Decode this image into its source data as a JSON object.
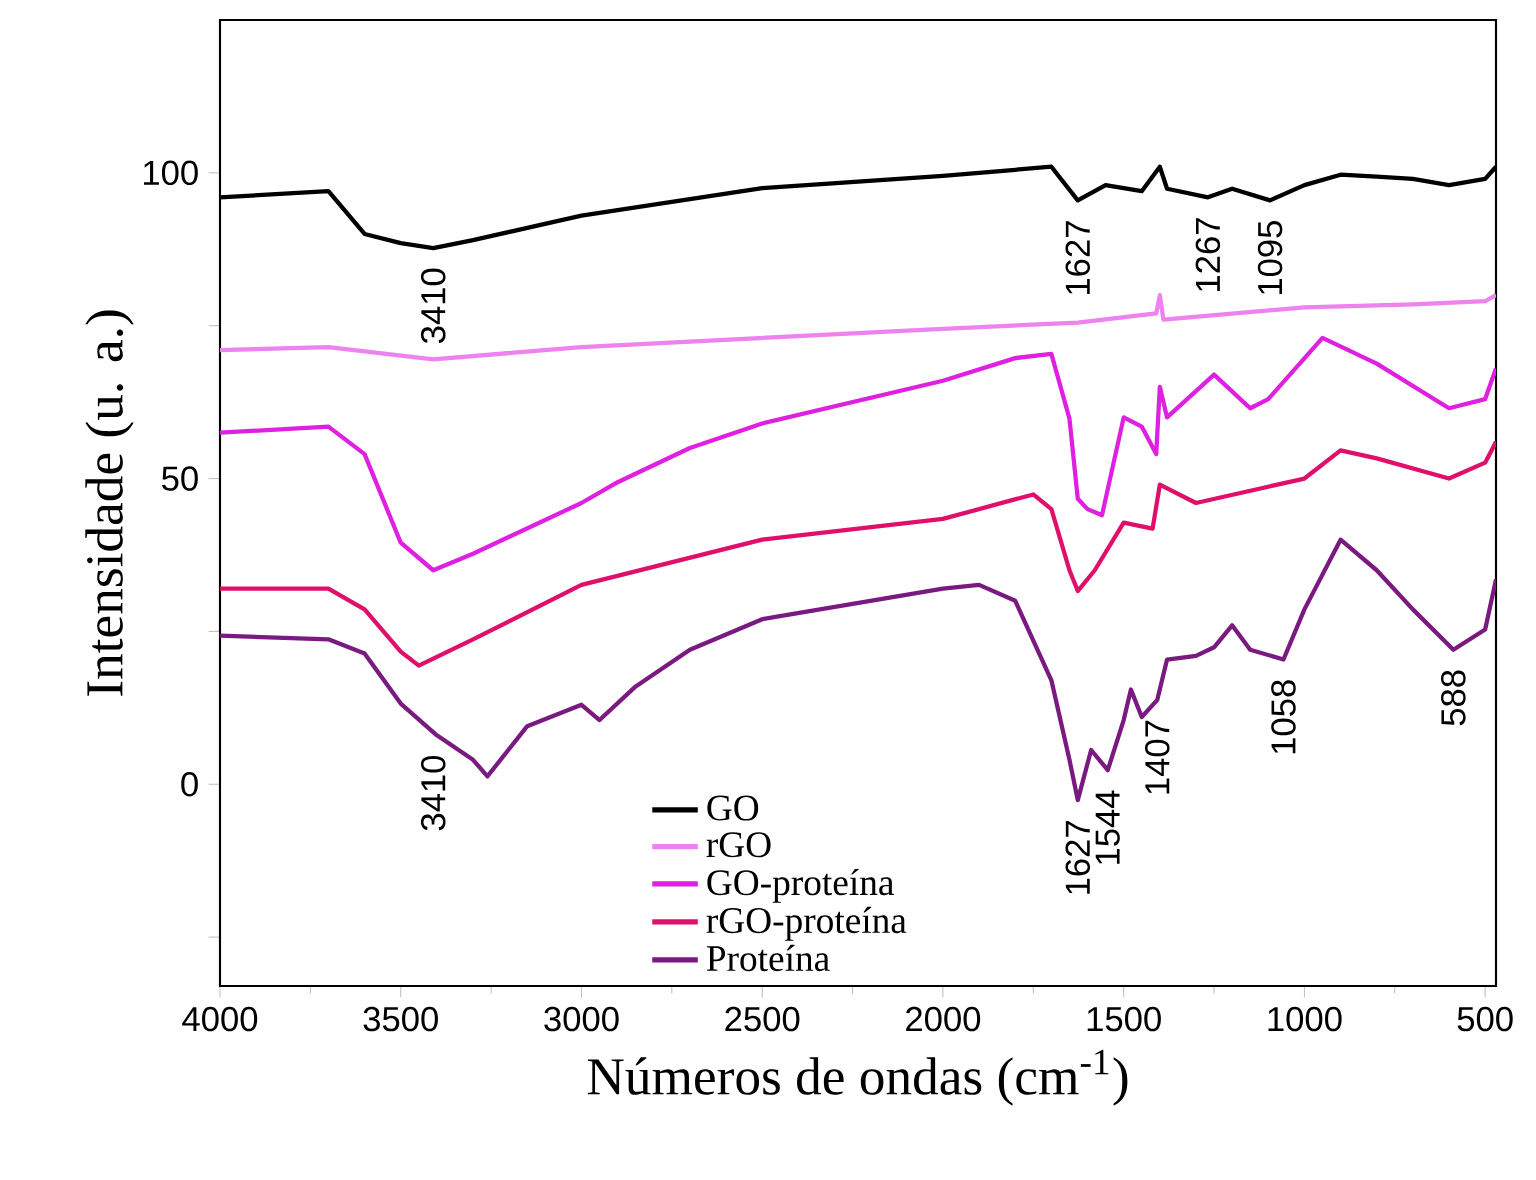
{
  "chart_data": {
    "type": "line",
    "xlabel": "Números de ondas (cm$^{-1}$)",
    "ylabel": "Intensidade (u. a.)",
    "xlim": [
      4000,
      470
    ],
    "ylim": [
      -33,
      125
    ],
    "xticks": [
      4000,
      3500,
      3000,
      2500,
      2000,
      1500,
      1000,
      500
    ],
    "yticks": [
      {
        "value": -25,
        "label": null
      },
      0,
      {
        "value": 25,
        "label": null
      },
      50,
      {
        "value": 75,
        "label": null
      },
      100
    ],
    "legend": "bottom",
    "grid": false,
    "marker": "none",
    "line_style": "solid",
    "series": [
      {
        "name": "GO",
        "color": "#000000",
        "x": [
          4000,
          3700,
          3600,
          3500,
          3410,
          3300,
          3000,
          2500,
          2000,
          1800,
          1700,
          1627,
          1550,
          1450,
          1400,
          1380,
          1267,
          1200,
          1095,
          1000,
          900,
          800,
          700,
          600,
          500,
          470
        ],
        "values": [
          96,
          97,
          90,
          88.5,
          87.7,
          89,
          93,
          97.5,
          99.5,
          100.5,
          101,
          95.5,
          98,
          97,
          101,
          97.4,
          96,
          97.4,
          95.5,
          98,
          99.7,
          99.4,
          99,
          98,
          99,
          101
        ]
      },
      {
        "name": "rGO",
        "color": "#ee82ee",
        "x": [
          4000,
          3700,
          3410,
          3000,
          2500,
          2000,
          1627,
          1410,
          1400,
          1390,
          1000,
          700,
          500,
          470
        ],
        "values": [
          71,
          71.5,
          69.5,
          71.5,
          73,
          74.5,
          75.5,
          77,
          80,
          76,
          78,
          78.5,
          79,
          80
        ]
      },
      {
        "name": "GO-proteína",
        "color": "#e020e0",
        "x": [
          4000,
          3700,
          3600,
          3500,
          3410,
          3300,
          3000,
          2900,
          2700,
          2500,
          2000,
          1800,
          1700,
          1650,
          1627,
          1600,
          1560,
          1500,
          1450,
          1410,
          1400,
          1380,
          1250,
          1150,
          1100,
          950,
          800,
          600,
          500,
          470
        ],
        "values": [
          57.5,
          58.5,
          54,
          39.5,
          35,
          37.7,
          46,
          49.4,
          55,
          59,
          66,
          69.7,
          70.4,
          59.8,
          46.7,
          45,
          44,
          60,
          58.5,
          54,
          65,
          60,
          67,
          61.5,
          63,
          73,
          68.8,
          61.5,
          63,
          68
        ]
      },
      {
        "name": "rGO-proteína",
        "color": "#e0106a",
        "x": [
          4000,
          3700,
          3600,
          3500,
          3450,
          3300,
          3000,
          2500,
          2000,
          1750,
          1700,
          1650,
          1627,
          1580,
          1500,
          1420,
          1400,
          1300,
          1000,
          900,
          800,
          600,
          500,
          470
        ],
        "values": [
          32,
          32,
          28.6,
          21.7,
          19.4,
          23.7,
          32.6,
          40,
          43.4,
          47.4,
          45,
          35,
          31.6,
          35,
          42.8,
          41.8,
          49,
          46,
          50,
          54.6,
          53.3,
          50,
          52.6,
          56
        ]
      },
      {
        "name": "Proteína",
        "color": "#7a1a80",
        "x": [
          4000,
          3700,
          3600,
          3500,
          3400,
          3300,
          3260,
          3150,
          3000,
          2950,
          2850,
          2700,
          2500,
          2000,
          1900,
          1800,
          1700,
          1650,
          1627,
          1590,
          1544,
          1500,
          1480,
          1450,
          1407,
          1380,
          1300,
          1250,
          1200,
          1150,
          1058,
          1000,
          900,
          800,
          700,
          588,
          500,
          470
        ],
        "values": [
          24.3,
          23.7,
          21.4,
          13.2,
          8,
          4,
          1.3,
          9.5,
          13,
          10.5,
          16,
          22,
          27,
          32,
          32.6,
          30,
          17,
          4,
          -2.6,
          5.6,
          2.3,
          10.5,
          15.5,
          11,
          13.8,
          20.4,
          21,
          22.4,
          26,
          22,
          20.4,
          28.6,
          40,
          35,
          28.6,
          22,
          25.3,
          33.5
        ]
      }
    ],
    "annotations": [
      {
        "text": "3410",
        "x": 3410,
        "y": 87.7
      },
      {
        "text": "1627",
        "x": 1627,
        "y": 95.5
      },
      {
        "text": "1267",
        "x": 1267,
        "y": 96
      },
      {
        "text": "1095",
        "x": 1095,
        "y": 95.5
      },
      {
        "text": "3410",
        "x": 3410,
        "y": 8
      },
      {
        "text": "1627",
        "x": 1627,
        "y": -2.6
      },
      {
        "text": "1544",
        "x": 1544,
        "y": 2.3
      },
      {
        "text": "1407",
        "x": 1407,
        "y": 13.8
      },
      {
        "text": "1058",
        "x": 1058,
        "y": 20.4
      },
      {
        "text": "588",
        "x": 588,
        "y": 22
      }
    ]
  }
}
